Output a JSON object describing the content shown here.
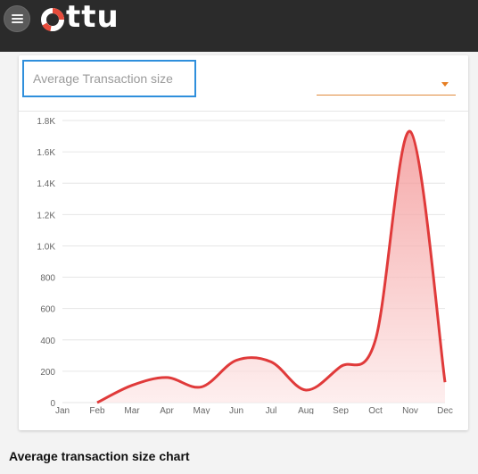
{
  "app": {
    "brand": "ttu"
  },
  "card": {
    "metric_label": "Average Transaction size",
    "selector_value": ""
  },
  "caption": "Average transaction size chart",
  "colors": {
    "line": "#e03a3a",
    "fill_top": "#f28c8c",
    "fill_bottom": "#fde9e9",
    "highlight": "#2f8fdc"
  },
  "chart_data": {
    "type": "area",
    "categories": [
      "Jan",
      "Feb",
      "Mar",
      "Apr",
      "May",
      "Jun",
      "Jul",
      "Aug",
      "Sep",
      "Oct",
      "Nov",
      "Dec"
    ],
    "y_ticks": [
      "0",
      "200",
      "400",
      "600",
      "800",
      "1.0K",
      "1.2K",
      "1.4K",
      "1.6K",
      "1.8K"
    ],
    "ylim": [
      0,
      1800
    ],
    "x": [
      "Feb",
      "Mar",
      "Apr",
      "May",
      "Jun",
      "Jul",
      "Aug",
      "Sep",
      "Oct",
      "Nov",
      "Dec"
    ],
    "values": [
      0,
      110,
      160,
      100,
      270,
      260,
      80,
      230,
      400,
      1730,
      130
    ],
    "grid": true,
    "legend": "none"
  }
}
